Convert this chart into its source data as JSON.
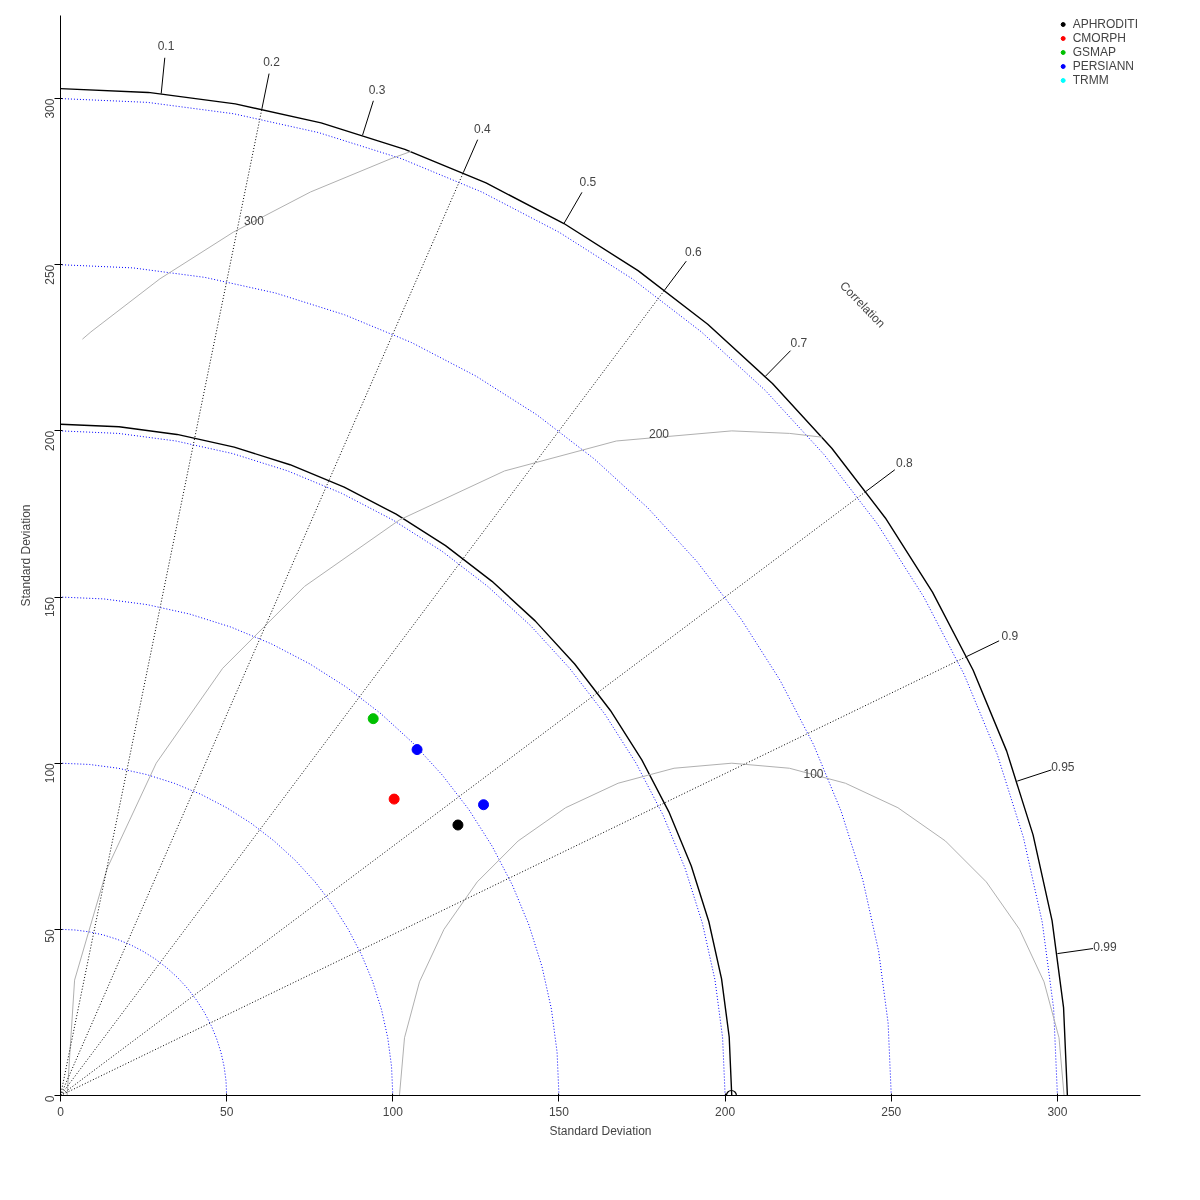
{
  "chart_data": {
    "type": "scatter",
    "xlabel": "Standard Deviation",
    "ylabel": "Standard Deviation",
    "xlim": [
      0,
      325
    ],
    "ylim": [
      0,
      325
    ],
    "xticks": [
      0,
      50,
      100,
      150,
      200,
      250,
      300
    ],
    "yticks": [
      0,
      50,
      100,
      150,
      200,
      250,
      300
    ],
    "legend": "top right",
    "marker": "circle",
    "series": [
      {
        "type": "line",
        "color": "#0000ff",
        "line_style": "dotted",
        "marker": "none",
        "x": [
          50,
          49.81,
          49.24,
          48.3,
          46.98,
          45.32,
          43.3,
          40.96,
          38.3,
          35.36,
          32.14,
          28.68,
          25,
          21.13,
          17.1,
          12.94,
          8.68,
          4.36,
          0
        ],
        "values": [
          0,
          4.36,
          8.68,
          12.94,
          17.1,
          21.13,
          25,
          28.68,
          32.14,
          35.36,
          38.3,
          40.96,
          43.3,
          45.32,
          46.98,
          48.3,
          49.24,
          49.81,
          50
        ]
      },
      {
        "type": "line",
        "color": "#0000ff",
        "line_style": "dotted",
        "marker": "none",
        "x": [
          100,
          99.62,
          98.48,
          96.59,
          93.97,
          90.63,
          86.6,
          81.92,
          76.6,
          70.71,
          64.28,
          57.36,
          50,
          42.26,
          34.2,
          25.88,
          17.36,
          8.72,
          0
        ],
        "values": [
          0,
          8.72,
          17.36,
          25.88,
          34.2,
          42.26,
          50,
          57.36,
          64.28,
          70.71,
          76.6,
          81.92,
          86.6,
          90.63,
          93.97,
          96.59,
          98.48,
          99.62,
          100
        ]
      },
      {
        "type": "line",
        "color": "#0000ff",
        "line_style": "dotted",
        "marker": "none",
        "x": [
          150,
          149.43,
          147.72,
          144.89,
          140.96,
          135.95,
          129.9,
          122.88,
          114.9,
          106.07,
          96.42,
          86.04,
          75,
          63.39,
          51.3,
          38.82,
          26.04,
          13.08,
          0
        ],
        "values": [
          0,
          13.08,
          26.04,
          38.82,
          51.3,
          63.39,
          75,
          86.04,
          96.42,
          106.07,
          114.9,
          122.88,
          129.9,
          135.95,
          140.96,
          144.89,
          147.72,
          149.43,
          150
        ]
      },
      {
        "type": "line",
        "color": "#0000ff",
        "line_style": "dotted",
        "marker": "none",
        "x": [
          200,
          199.24,
          196.96,
          193.18,
          187.94,
          181.26,
          173.2,
          163.84,
          153.2,
          141.42,
          128.56,
          114.72,
          100,
          84.52,
          68.4,
          51.76,
          34.72,
          17.44,
          0
        ],
        "values": [
          0,
          17.44,
          34.72,
          51.76,
          68.4,
          84.52,
          100,
          114.72,
          128.56,
          141.42,
          153.2,
          163.84,
          173.2,
          181.26,
          187.94,
          193.18,
          196.96,
          199.24,
          200
        ]
      },
      {
        "type": "line",
        "color": "#0000ff",
        "line_style": "dotted",
        "marker": "none",
        "x": [
          250,
          249.05,
          246.2,
          241.48,
          234.93,
          226.58,
          216.5,
          204.8,
          191.5,
          176.78,
          160.7,
          143.4,
          125,
          105.65,
          85.5,
          64.7,
          43.4,
          21.8,
          0
        ],
        "values": [
          0,
          21.8,
          43.4,
          64.7,
          85.5,
          105.65,
          125,
          143.4,
          160.7,
          176.78,
          191.5,
          204.8,
          216.5,
          226.58,
          234.93,
          241.48,
          246.2,
          249.05,
          250
        ]
      },
      {
        "type": "line",
        "color": "#0000ff",
        "line_style": "dotted",
        "marker": "none",
        "x": [
          300,
          298.86,
          295.44,
          289.77,
          281.91,
          271.89,
          259.8,
          245.76,
          229.8,
          212.13,
          192.84,
          172.08,
          150,
          126.78,
          102.6,
          77.64,
          52.08,
          26.16,
          0
        ],
        "values": [
          0,
          26.16,
          52.08,
          77.64,
          102.6,
          126.78,
          150,
          172.08,
          192.84,
          212.13,
          229.8,
          245.76,
          259.8,
          271.89,
          281.91,
          289.77,
          295.44,
          298.86,
          300
        ]
      },
      {
        "type": "line",
        "color": "#000000",
        "line_style": "solid",
        "marker": "none",
        "x": [
          202,
          201.23,
          198.93,
          195.11,
          189.82,
          183.07,
          174.93,
          165.48,
          154.73,
          142.83,
          129.85,
          115.87,
          101,
          85.37,
          69.08,
          52.28,
          35.07,
          17.61,
          0
        ],
        "values": [
          0,
          17.61,
          35.07,
          52.28,
          69.08,
          85.37,
          101,
          115.87,
          129.85,
          142.83,
          154.73,
          165.48,
          174.93,
          183.07,
          189.82,
          195.11,
          198.93,
          201.23,
          202
        ]
      },
      {
        "type": "line",
        "color": "#000000",
        "line_style": "solid",
        "marker": "none",
        "x": [
          303,
          301.85,
          298.39,
          292.67,
          284.73,
          274.61,
          262.4,
          248.22,
          232.1,
          214.25,
          194.77,
          173.8,
          151.5,
          128.05,
          103.63,
          78.42,
          52.6,
          26.42,
          0
        ],
        "values": [
          0,
          26.42,
          52.6,
          78.42,
          103.63,
          128.05,
          151.5,
          173.8,
          194.77,
          214.25,
          232.1,
          248.22,
          262.4,
          274.61,
          284.73,
          292.67,
          298.39,
          301.85,
          303
        ]
      },
      {
        "type": "line",
        "color": "#b0b0b0",
        "line_style": "solid",
        "marker": "none",
        "x": [
          302,
          300.48,
          295.97,
          288.6,
          278.6,
          266.28,
          252,
          236.2,
          219.36,
          202,
          184.64,
          167.8,
          152,
          137.72,
          125.4,
          115.4,
          108.03,
          103.52,
          102
        ],
        "values": [
          0,
          17.36,
          34.2,
          50,
          64.28,
          76.6,
          86.6,
          93.97,
          98.48,
          100,
          98.48,
          93.97,
          86.6,
          76.6,
          64.28,
          50,
          34.2,
          17.36,
          0
        ]
      },
      {
        "type": "line",
        "color": "#b0b0b0",
        "line_style": "solid",
        "marker": "none",
        "x": [
          229.2,
          219.43,
          202,
          167.27,
          133.6,
          102,
          73.44,
          48.8,
          28.8,
          14.06,
          4.24,
          2
        ],
        "values": [
          198.1,
          199.24,
          200,
          196.96,
          187.94,
          173.2,
          153.2,
          128.56,
          100,
          68.4,
          34.72,
          0
        ]
      },
      {
        "type": "line",
        "color": "#b0b0b0",
        "line_style": "solid",
        "marker": "none",
        "x": [
          105.5,
          99.4,
          75.22,
          52,
          29.92,
          9.16,
          6.6
        ],
        "values": [
          284.1,
          281.9,
          271.89,
          259.8,
          245.76,
          229.8,
          227.6
        ]
      },
      {
        "type": "line",
        "color": "#000000",
        "line_style": "dotted",
        "marker": "none",
        "x": [
          0,
          60.6
        ],
        "values": [
          0,
          296.9
        ]
      },
      {
        "type": "line",
        "color": "#000000",
        "line_style": "dotted",
        "marker": "none",
        "x": [
          0,
          121.2
        ],
        "values": [
          0,
          277.7
        ]
      },
      {
        "type": "line",
        "color": "#000000",
        "line_style": "dotted",
        "marker": "none",
        "x": [
          0,
          181.8
        ],
        "values": [
          0,
          242.4
        ]
      },
      {
        "type": "line",
        "color": "#000000",
        "line_style": "dotted",
        "marker": "none",
        "x": [
          0,
          242.4
        ],
        "values": [
          0,
          181.8
        ]
      },
      {
        "type": "line",
        "color": "#000000",
        "line_style": "dotted",
        "marker": "none",
        "x": [
          0,
          272.7
        ],
        "values": [
          0,
          132.1
        ]
      },
      {
        "name": "APHRODITI",
        "color": "#000000",
        "x": [
          119.6
        ],
        "values": [
          81.4
        ]
      },
      {
        "name": "CMORPH",
        "color": "#ff0000",
        "x": [
          100.4
        ],
        "values": [
          89.2
        ]
      },
      {
        "name": "GSMAP",
        "color": "#00c000",
        "x": [
          94.1
        ],
        "values": [
          113.4
        ]
      },
      {
        "name": "PERSIANN",
        "color": "#0000ff",
        "x": [
          107.3,
          127.3
        ],
        "values": [
          104.1,
          87.5
        ]
      },
      {
        "name": "TRMM",
        "color": "#00ffff",
        "x": [
          null
        ],
        "values": [
          null
        ]
      },
      {
        "color": "#000000",
        "x": [
          201.9
        ],
        "values": [
          0
        ]
      }
    ],
    "annotations": [
      {
        "text": "0.1",
        "x": 30.3,
        "y": 301.5
      },
      {
        "text": "0.2",
        "x": 60.6,
        "y": 296.9
      },
      {
        "text": "0.3",
        "x": 90.9,
        "y": 289.0
      },
      {
        "text": "0.4",
        "x": 121.2,
        "y": 277.7
      },
      {
        "text": "0.5",
        "x": 151.5,
        "y": 262.4
      },
      {
        "text": "0.6",
        "x": 181.8,
        "y": 242.4
      },
      {
        "text": "0.7",
        "x": 212.1,
        "y": 216.4
      },
      {
        "text": "0.8",
        "x": 242.4,
        "y": 181.8
      },
      {
        "text": "0.9",
        "x": 272.7,
        "y": 132.1
      },
      {
        "text": "0.95",
        "x": 287.9,
        "y": 94.6
      },
      {
        "text": "0.99",
        "x": 300.0,
        "y": 42.7
      },
      "Correlation",
      {
        "text": "300",
        "x": 58.2,
        "y": 263.4
      },
      {
        "text": "200",
        "x": 180.1,
        "y": 199.1
      },
      {
        "text": "100",
        "x": 226.6,
        "y": 96.8
      }
    ]
  }
}
